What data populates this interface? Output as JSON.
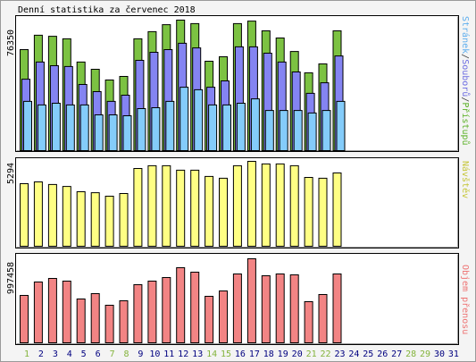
{
  "title": "Denní statistika za červenec 2018",
  "colors": {
    "background": "#F4F4F4",
    "panel": "#FFFFFF",
    "hits": "#7CC242",
    "files": "#8484F2",
    "pages": "#84CCFA",
    "visits": "#FFFF84",
    "volume": "#F28484",
    "weekday_label": "#000080",
    "weekend_label": "#84B43C",
    "legend_hits": "#5EB22A",
    "legend_files": "#6E6EE2",
    "legend_pages": "#5EAEEE",
    "legend_separator": "#404040",
    "legend_visits": "#C6C638",
    "legend_volume": "#EE7474"
  },
  "x_axis": {
    "weekend_days": [
      1,
      7,
      8,
      14,
      15,
      21,
      22,
      28,
      29
    ]
  },
  "chart_data": [
    {
      "type": "bar",
      "categories": [
        "1",
        "2",
        "3",
        "4",
        "5",
        "6",
        "7",
        "8",
        "9",
        "10",
        "11",
        "12",
        "13",
        "14",
        "15",
        "16",
        "17",
        "18",
        "19",
        "20",
        "21",
        "22",
        "23",
        "24",
        "25",
        "26",
        "27",
        "28",
        "29",
        "30",
        "31"
      ],
      "ymax": 76350,
      "legend_separator": "/",
      "series": [
        {
          "name": "Přístupů",
          "values": [
            59100,
            67500,
            66900,
            65400,
            51800,
            47600,
            41300,
            43400,
            65400,
            69600,
            73700,
            76350,
            74300,
            52300,
            54900,
            74300,
            75800,
            70100,
            65900,
            58000,
            45500,
            50700,
            70100,
            0,
            0,
            0,
            0,
            0,
            0,
            0,
            0
          ]
        },
        {
          "name": "Souborů",
          "values": [
            41800,
            51800,
            49700,
            49200,
            38700,
            34500,
            28800,
            32400,
            52800,
            57500,
            59100,
            62800,
            60100,
            37100,
            40800,
            60700,
            60700,
            57000,
            51800,
            46000,
            33500,
            39700,
            55400,
            0,
            0,
            0,
            0,
            0,
            0,
            0,
            0
          ]
        },
        {
          "name": "Stránek",
          "values": [
            28800,
            26700,
            27700,
            26700,
            26700,
            20900,
            20900,
            20400,
            24600,
            25100,
            28800,
            37100,
            35600,
            26700,
            26700,
            27700,
            30300,
            23500,
            23500,
            23500,
            22000,
            23500,
            28800,
            0,
            0,
            0,
            0,
            0,
            0,
            0,
            0
          ]
        }
      ]
    },
    {
      "type": "bar",
      "categories": [
        "1",
        "2",
        "3",
        "4",
        "5",
        "6",
        "7",
        "8",
        "9",
        "10",
        "11",
        "12",
        "13",
        "14",
        "15",
        "16",
        "17",
        "18",
        "19",
        "20",
        "21",
        "22",
        "23",
        "24",
        "25",
        "26",
        "27",
        "28",
        "29",
        "30",
        "31"
      ],
      "ymax": 5294,
      "series": [
        {
          "name": "Návštěv",
          "values": [
            3900,
            4010,
            3850,
            3730,
            3400,
            3340,
            3120,
            3290,
            4850,
            5020,
            5020,
            4740,
            4740,
            4350,
            4240,
            5020,
            5294,
            5130,
            5130,
            5020,
            4290,
            4240,
            4570,
            0,
            0,
            0,
            0,
            0,
            0,
            0,
            0
          ]
        }
      ]
    },
    {
      "type": "bar",
      "categories": [
        "1",
        "2",
        "3",
        "4",
        "5",
        "6",
        "7",
        "8",
        "9",
        "10",
        "11",
        "12",
        "13",
        "14",
        "15",
        "16",
        "17",
        "18",
        "19",
        "20",
        "21",
        "22",
        "23",
        "24",
        "25",
        "26",
        "27",
        "28",
        "29",
        "30",
        "31"
      ],
      "ymax": 997458,
      "series": [
        {
          "name": "Objem přenosu",
          "values": [
            562000,
            721500,
            764000,
            732000,
            520000,
            583600,
            445700,
            498700,
            689700,
            732000,
            774600,
            891300,
            838300,
            551800,
            615400,
            817000,
            997458,
            795800,
            817000,
            806400,
            488100,
            573000,
            817000,
            0,
            0,
            0,
            0,
            0,
            0,
            0,
            0
          ]
        }
      ]
    }
  ]
}
